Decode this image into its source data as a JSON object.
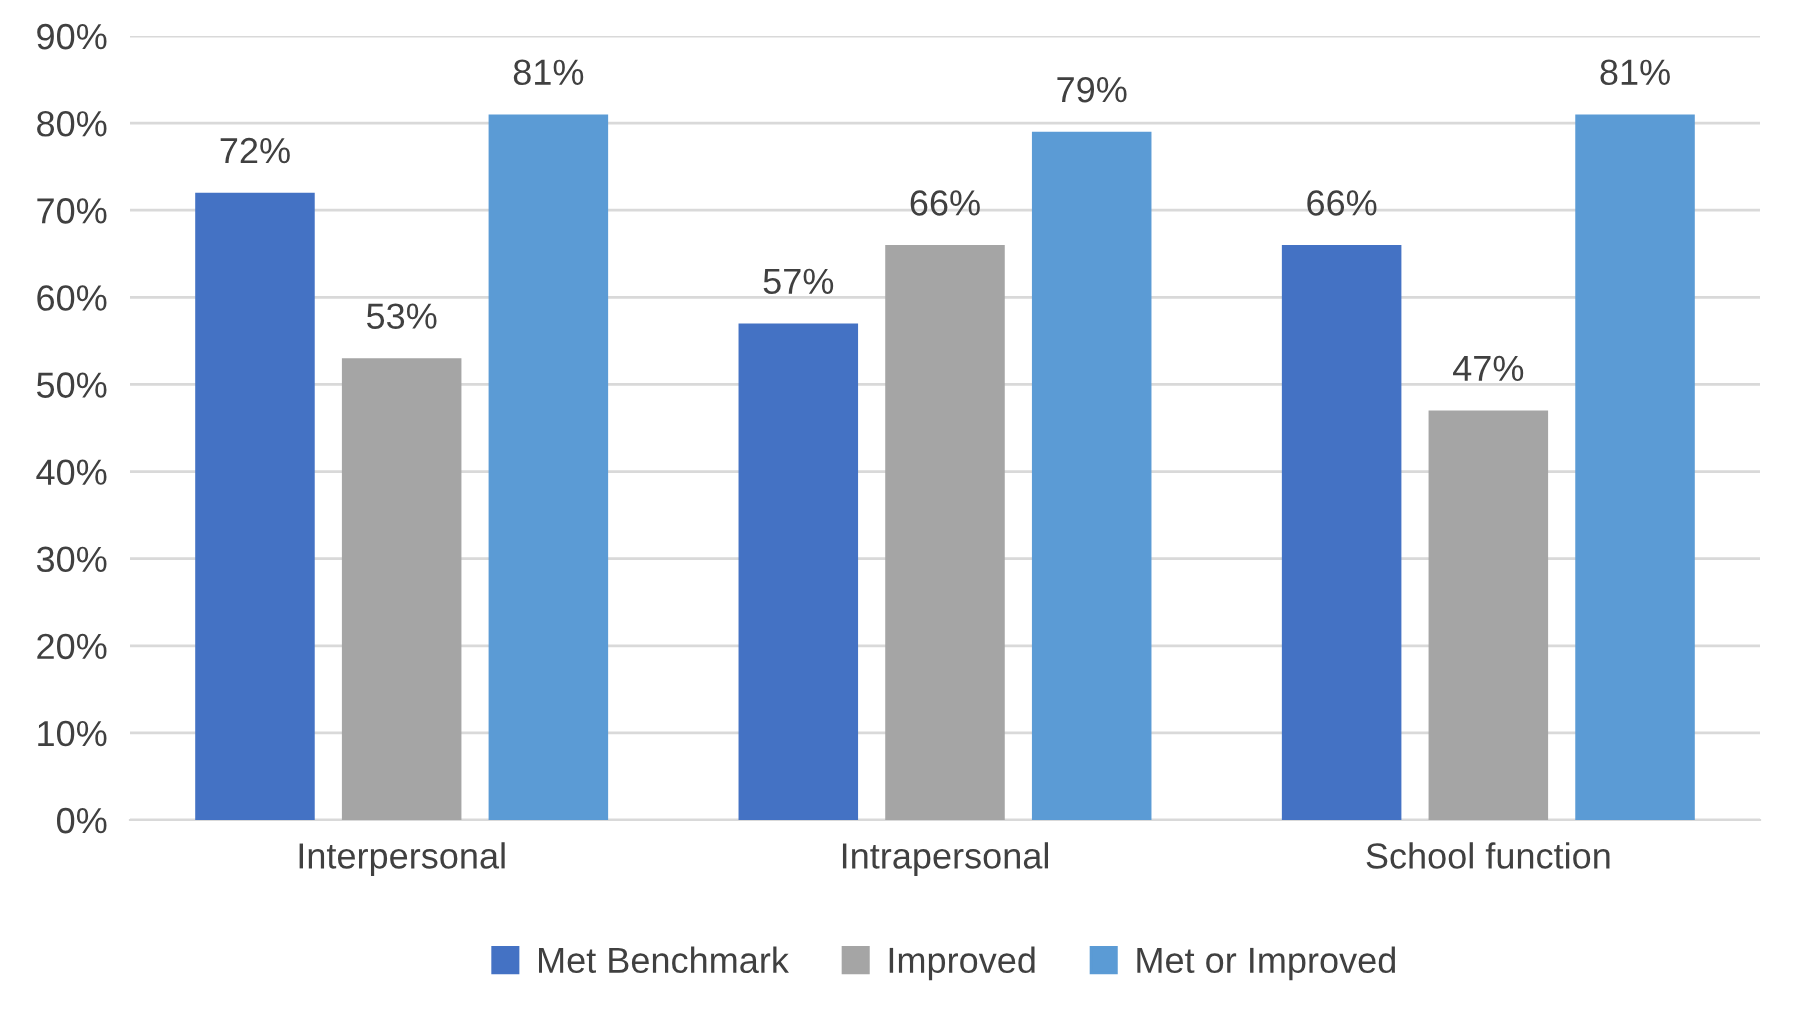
{
  "chart_data": {
    "type": "bar",
    "categories": [
      "Interpersonal",
      "Intrapersonal",
      "School function"
    ],
    "series": [
      {
        "name": "Met Benchmark",
        "color": "#4472c4",
        "values": [
          72,
          57,
          66
        ],
        "value_labels": [
          "72%",
          "57%",
          "66%"
        ]
      },
      {
        "name": "Improved",
        "color": "#a5a5a5",
        "values": [
          53,
          66,
          47
        ],
        "value_labels": [
          "53%",
          "66%",
          "47%"
        ]
      },
      {
        "name": "Met or Improved",
        "color": "#5b9bd5",
        "values": [
          81,
          79,
          81
        ],
        "value_labels": [
          "81%",
          "79%",
          "81%"
        ]
      }
    ],
    "ylim": [
      0,
      90
    ],
    "yticks": [
      {
        "value": 0,
        "label": "0%"
      },
      {
        "value": 10,
        "label": "10%"
      },
      {
        "value": 20,
        "label": "20%"
      },
      {
        "value": 30,
        "label": "30%"
      },
      {
        "value": 40,
        "label": "40%"
      },
      {
        "value": 50,
        "label": "50%"
      },
      {
        "value": 60,
        "label": "60%"
      },
      {
        "value": 70,
        "label": "70%"
      },
      {
        "value": 80,
        "label": "80%"
      },
      {
        "value": 90,
        "label": "90%"
      }
    ],
    "grid": "y",
    "legend": "bottom"
  }
}
